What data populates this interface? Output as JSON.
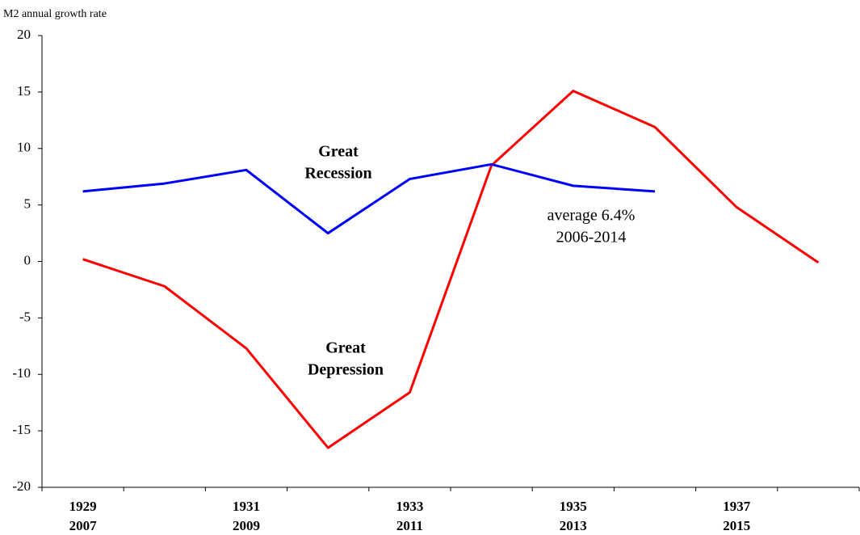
{
  "chart_data": {
    "type": "line",
    "y_axis_label": "M2 annual growth rate",
    "categories": [
      "1929",
      null,
      "1931",
      null,
      "1933",
      null,
      "1935",
      null,
      "1937",
      null
    ],
    "categories_row2": [
      "2007",
      null,
      "2009",
      null,
      "2011",
      null,
      "2013",
      null,
      "2015",
      null
    ],
    "series": [
      {
        "name_lines": [
          "Great",
          "Depression"
        ],
        "color": "#ff0000",
        "values": [
          0.2,
          -2.2,
          -7.7,
          -16.5,
          -11.6,
          8.5,
          15.1,
          11.9,
          4.8,
          -0.1
        ]
      },
      {
        "name_lines": [
          "Great",
          "Recession"
        ],
        "color": "#0000ff",
        "values": [
          6.2,
          6.9,
          8.1,
          2.5,
          7.3,
          8.6,
          6.7,
          6.2,
          null,
          null
        ]
      }
    ],
    "annotation_lines": [
      "average 6.4%",
      "2006-2014"
    ],
    "ylim": [
      -20,
      20
    ],
    "yticks": [
      -20,
      -15,
      -10,
      -5,
      0,
      5,
      10,
      15,
      20
    ]
  }
}
